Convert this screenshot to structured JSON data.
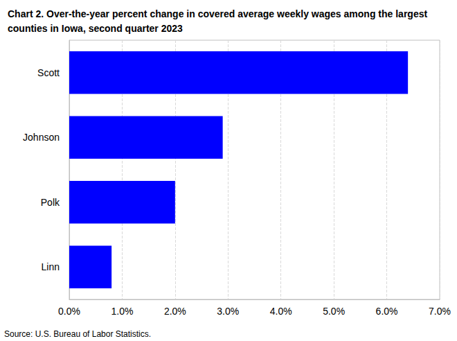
{
  "chart_data": {
    "type": "bar",
    "title": "Chart 2. Over-the-year percent change in covered average weekly wages among the largest counties in Iowa, second quarter 2023",
    "source": "Source: U.S. Bureau of Labor Statistics.",
    "orientation": "horizontal",
    "categories": [
      "Scott",
      "Johnson",
      "Polk",
      "Linn"
    ],
    "values": [
      6.4,
      2.9,
      2.0,
      0.8
    ],
    "color": "#0000ff",
    "xlim": [
      0,
      7
    ],
    "xticks": [
      {
        "value": 0,
        "label": "0.0%"
      },
      {
        "value": 1,
        "label": "1.0%"
      },
      {
        "value": 2,
        "label": "2.0%"
      },
      {
        "value": 3,
        "label": "3.0%"
      },
      {
        "value": 4,
        "label": "4.0%"
      },
      {
        "value": 5,
        "label": "5.0%"
      },
      {
        "value": 6,
        "label": "6.0%"
      },
      {
        "value": 7,
        "label": "7.0%"
      }
    ],
    "grid": true
  }
}
